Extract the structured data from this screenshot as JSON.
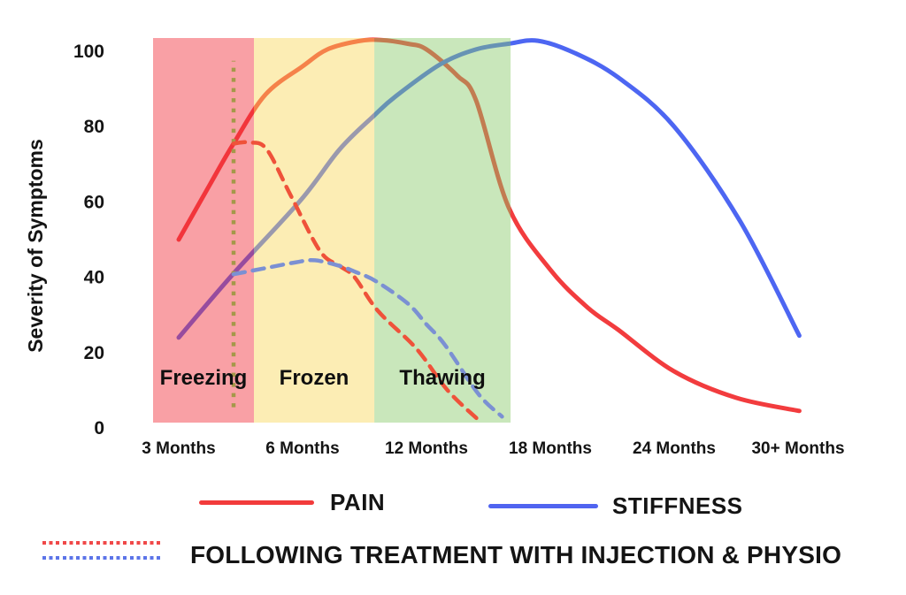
{
  "chart_data": {
    "type": "line",
    "title": "",
    "ylabel": "Severity of Symptoms",
    "ylim": [
      0,
      105
    ],
    "grid": false,
    "y_ticks": [
      0,
      20,
      40,
      60,
      80,
      100
    ],
    "x_ticks": [
      "3 Months",
      "6 Months",
      "12 Months",
      "18 Months",
      "24 Months",
      "30+ Months"
    ],
    "x_unit_note": "series x values are tick-index units: 0 = 3 Months, 1 = 6 Months, 2 = 12 Months, 3 = 18 Months, 4 = 24 Months, 5 = 30+ Months",
    "phases": [
      {
        "label": "Freezing",
        "color": "rgba(242,44,55,0.45)",
        "t_start": -0.207,
        "t_end": 0.607
      },
      {
        "label": "Frozen",
        "color": "rgba(249,215,89,0.45)",
        "t_start": 0.607,
        "t_end": 1.579
      },
      {
        "label": "Thawing",
        "color": "rgba(136,202,104,0.45)",
        "t_start": 1.579,
        "t_end": 2.679
      }
    ],
    "series": [
      {
        "name": "Pain",
        "style": "solid",
        "color": "#f23c3e",
        "points": [
          [
            0,
            50
          ],
          [
            0.25,
            64.5
          ],
          [
            0.443,
            75.5
          ],
          [
            0.7,
            88.5
          ],
          [
            1.0,
            96
          ],
          [
            1.2,
            100.5
          ],
          [
            1.45,
            102.7
          ],
          [
            1.63,
            103
          ],
          [
            1.85,
            102
          ],
          [
            2.0,
            100.5
          ],
          [
            2.25,
            93.5
          ],
          [
            2.4,
            87
          ],
          [
            2.664,
            58.5
          ],
          [
            3.0,
            42
          ],
          [
            3.3,
            32
          ],
          [
            3.55,
            26
          ],
          [
            4.0,
            15
          ],
          [
            4.5,
            8
          ],
          [
            5.01,
            4.5
          ]
        ]
      },
      {
        "name": "Stiffness",
        "style": "solid",
        "color": "#4d66f2",
        "points": [
          [
            0,
            24
          ],
          [
            0.443,
            41
          ],
          [
            0.986,
            60.5
          ],
          [
            1.3,
            74
          ],
          [
            1.579,
            83
          ],
          [
            1.75,
            88
          ],
          [
            2.11,
            96.5
          ],
          [
            2.4,
            100.5
          ],
          [
            2.664,
            102
          ],
          [
            2.9,
            102.8
          ],
          [
            3.2,
            99.5
          ],
          [
            3.55,
            93
          ],
          [
            4.0,
            80
          ],
          [
            4.53,
            55
          ],
          [
            5.01,
            24.5
          ]
        ]
      },
      {
        "name": "Pain following treatment",
        "style": "dashed",
        "color": "#ef523a",
        "points": [
          [
            0.443,
            75.5
          ],
          [
            0.57,
            75.8
          ],
          [
            0.71,
            74
          ],
          [
            0.9,
            62
          ],
          [
            1.14,
            47
          ],
          [
            1.3,
            43
          ],
          [
            1.42,
            40
          ],
          [
            1.61,
            31
          ],
          [
            1.92,
            21
          ],
          [
            2.17,
            10
          ],
          [
            2.44,
            1.5
          ]
        ]
      },
      {
        "name": "Stiffness following treatment",
        "style": "dashed",
        "color": "#7b90d3",
        "points": [
          [
            0.443,
            40.8
          ],
          [
            0.71,
            42.5
          ],
          [
            0.95,
            44
          ],
          [
            1.1,
            44.5
          ],
          [
            1.3,
            43
          ],
          [
            1.42,
            41.5
          ],
          [
            1.59,
            39
          ],
          [
            1.85,
            33
          ],
          [
            2.0,
            27.5
          ],
          [
            2.15,
            22
          ],
          [
            2.42,
            9
          ],
          [
            2.61,
            3
          ]
        ]
      }
    ],
    "treatment_marker": {
      "t": 0.443,
      "v_start": 5.5,
      "v_end": 97.5,
      "color": "#a49849"
    }
  },
  "legend": {
    "pain": "PAIN",
    "stiffness": "STIFFNESS",
    "treatment": "FOLLOWING TREATMENT WITH INJECTION & PHYSIO"
  }
}
